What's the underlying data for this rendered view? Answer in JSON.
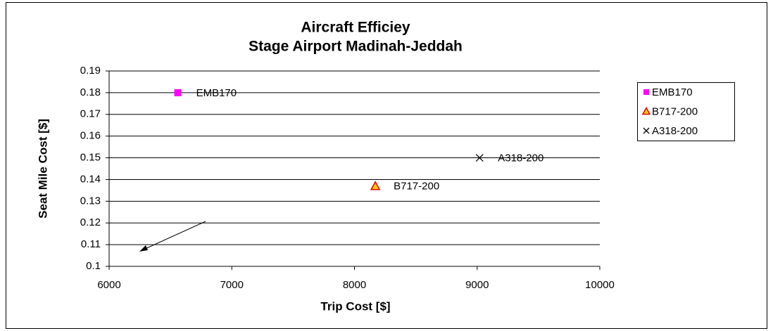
{
  "chart_data": {
    "type": "scatter",
    "title": "Aircraft Efficiey",
    "subtitle": "Stage Airport Madinah-Jeddah",
    "x_label": "Trip Cost [$]",
    "y_label": "Seat Mile Cost [$]",
    "xlim": [
      6000,
      10000
    ],
    "xticks": [
      6000,
      7000,
      8000,
      9000,
      10000
    ],
    "ylim": [
      0.1,
      0.19
    ],
    "yticks": [
      0.1,
      0.11,
      0.12,
      0.13,
      0.14,
      0.15,
      0.16,
      0.17,
      0.18,
      0.19
    ],
    "grid": true,
    "legend": "right",
    "series": [
      {
        "name": "EMB170",
        "color": "#ff00ff",
        "marker": "square",
        "x": [
          6560
        ],
        "values": [
          0.18
        ]
      },
      {
        "name": "B717-200",
        "color": "#ffcc00",
        "marker": "triangle",
        "x": [
          8170
        ],
        "values": [
          0.137
        ]
      },
      {
        "name": "A318-200",
        "color": "#000000",
        "marker": "x",
        "x": [
          9020
        ],
        "values": [
          0.15
        ]
      }
    ]
  }
}
